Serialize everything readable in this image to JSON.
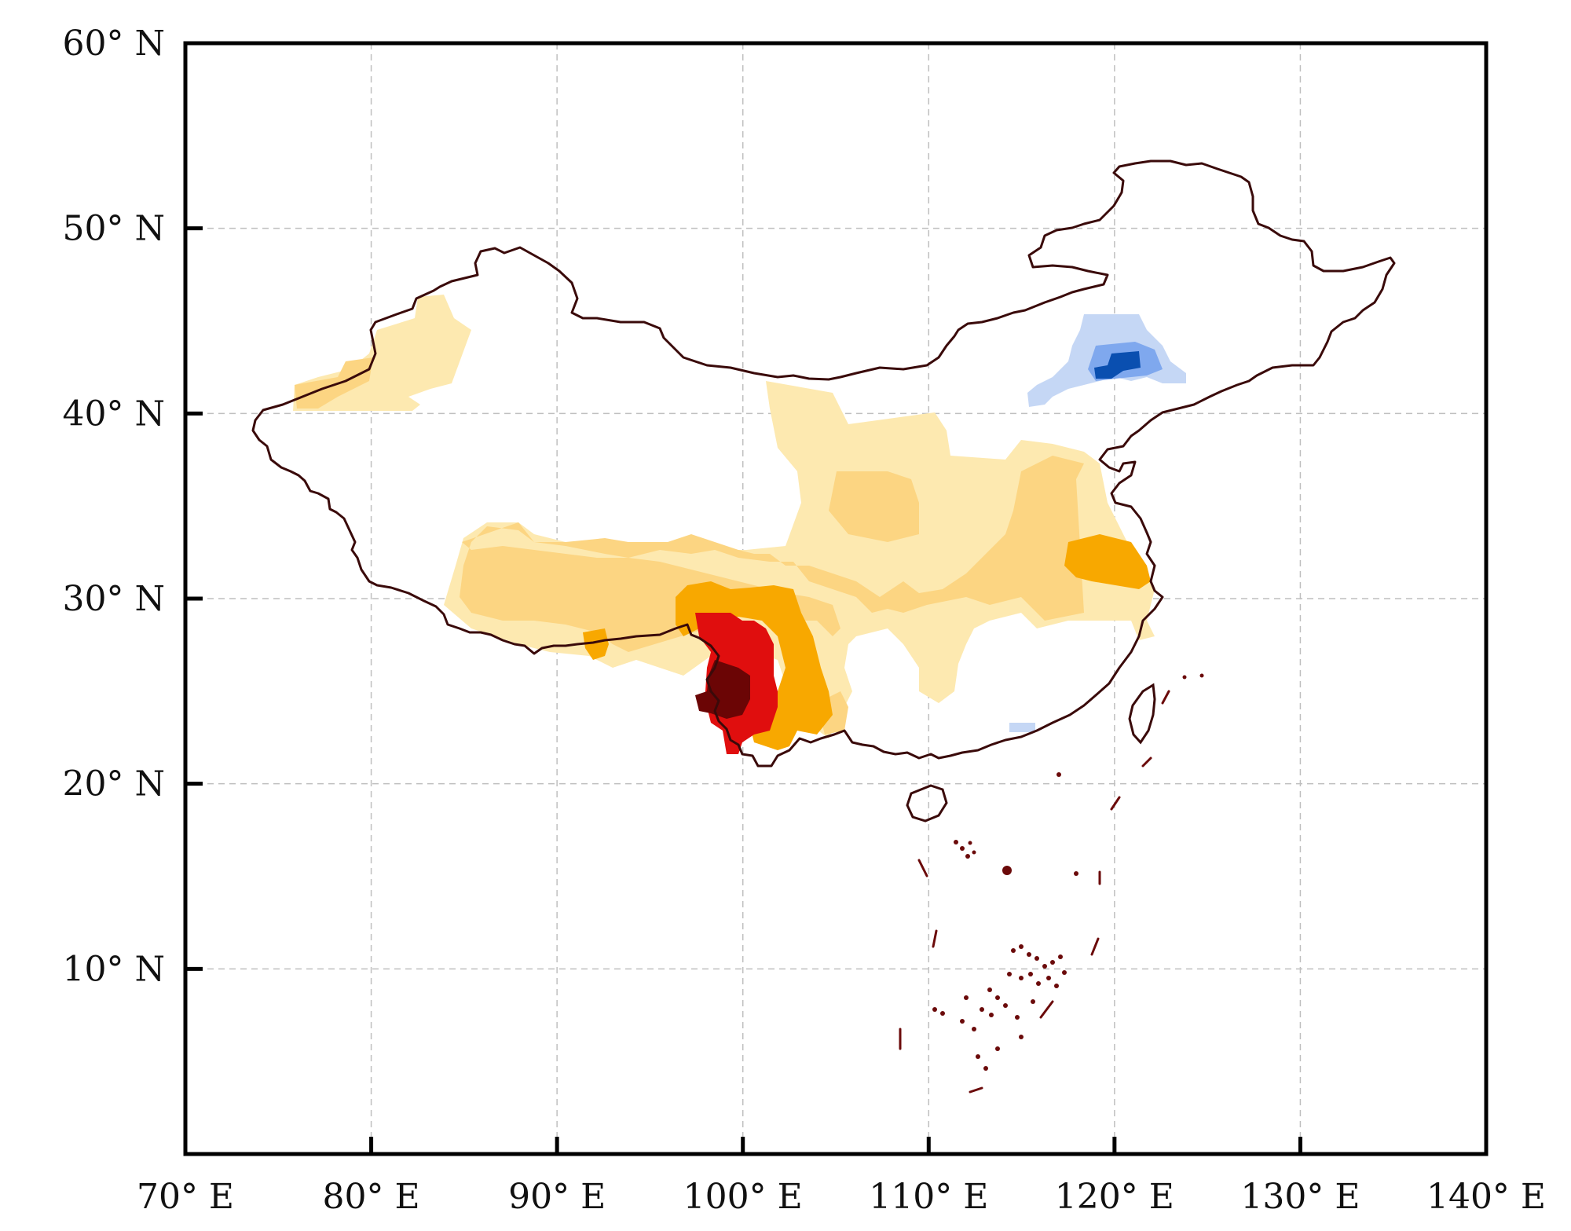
{
  "map": {
    "x_ticks": [
      {
        "lon": 70,
        "label": "70° E"
      },
      {
        "lon": 80,
        "label": "80° E"
      },
      {
        "lon": 90,
        "label": "90° E"
      },
      {
        "lon": 100,
        "label": "100° E"
      },
      {
        "lon": 110,
        "label": "110° E"
      },
      {
        "lon": 120,
        "label": "120° E"
      },
      {
        "lon": 130,
        "label": "130° E"
      },
      {
        "lon": 140,
        "label": "140° E"
      }
    ],
    "y_ticks": [
      {
        "lat": 10,
        "label": "10° N"
      },
      {
        "lat": 20,
        "label": "20° N"
      },
      {
        "lat": 30,
        "label": "30° N"
      },
      {
        "lat": 40,
        "label": "40° N"
      },
      {
        "lat": 50,
        "label": "50° N"
      },
      {
        "lat": 60,
        "label": "60° N"
      }
    ],
    "lon_range": [
      70,
      140
    ],
    "lat_range": [
      0,
      60
    ],
    "grid": true,
    "colors": {
      "border": "#3a0a0a",
      "islands": "#6b0a0a",
      "grid": "#bfbfbf",
      "frame": "#000000",
      "pale_yellow": "#fde9b0",
      "light_orange": "#fcd582",
      "orange": "#f8a800",
      "red": "#e00e0e",
      "dark_red": "#6b0505",
      "light_blue": "#c5d7f5",
      "mid_blue": "#7fa8ee",
      "dark_blue": "#0a4fb0"
    }
  }
}
